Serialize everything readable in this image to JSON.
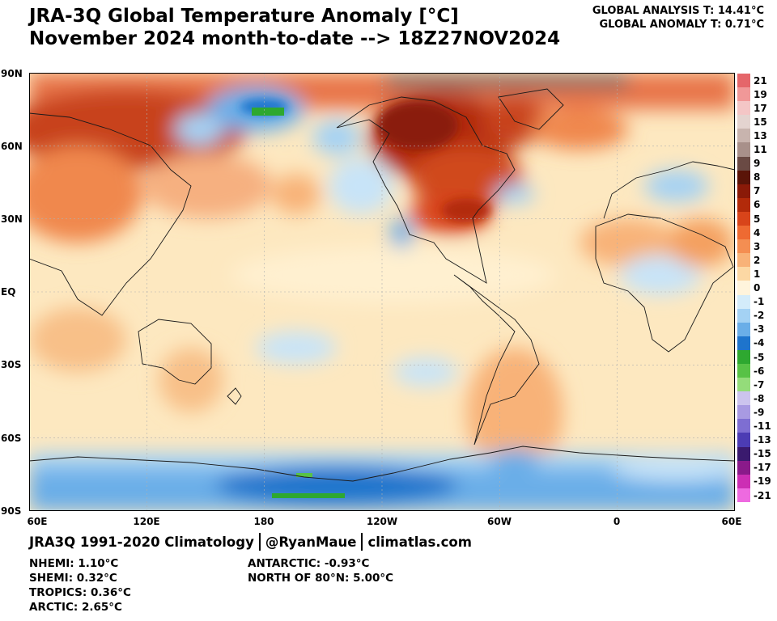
{
  "title_line1": "JRA-3Q Global Temperature Anomaly [°C]",
  "title_line2": "November 2024 month-to-date --> 18Z27NOV2024",
  "global_analysis": "GLOBAL ANALYSIS T: 14.41°C",
  "global_anomaly": "GLOBAL ANOMALY T: 0.71°C",
  "lat_labels": [
    "90N",
    "60N",
    "30N",
    "EQ",
    "30S",
    "60S",
    "90S"
  ],
  "lon_labels": [
    "60E",
    "120E",
    "180",
    "120W",
    "60W",
    "0",
    "60E"
  ],
  "colorbar": {
    "labels": [
      "21",
      "19",
      "17",
      "15",
      "13",
      "11",
      "9",
      "8",
      "7",
      "6",
      "5",
      "4",
      "3",
      "2",
      "1",
      "0",
      "-1",
      "-2",
      "-3",
      "-4",
      "-5",
      "-6",
      "-7",
      "-8",
      "-9",
      "-11",
      "-13",
      "-15",
      "-17",
      "-19",
      "-21"
    ],
    "colors": [
      "#e5666a",
      "#f09898",
      "#f4c6c6",
      "#e4d4d0",
      "#c8b4ae",
      "#a8908a",
      "#6a4a44",
      "#5a1408",
      "#8a1a08",
      "#b22a0a",
      "#d8441a",
      "#ee6a32",
      "#f48e52",
      "#f8b278",
      "#fcd8a4",
      "#fff4dc",
      "#d4ecfa",
      "#a4d2f4",
      "#6aaee8",
      "#1e74cc",
      "#2ea830",
      "#58c246",
      "#94dc7a",
      "#ccc4ee",
      "#a89ae2",
      "#7e6ed2",
      "#4c3cb4",
      "#3a1a6e",
      "#8a1a8a",
      "#cc2eb4",
      "#ee6ae0"
    ]
  },
  "footer": {
    "climatology": "JRA3Q 1991-2020 Climatology",
    "handle": "@RyanMaue",
    "site": "climatlas.com"
  },
  "stats": {
    "nhemi": "NHEMI: 1.10°C",
    "shemi": "SHEMI: 0.32°C",
    "tropics": "TROPICS: 0.36°C",
    "arctic": "ARCTIC: 2.65°C",
    "antarctic": "ANTARCTIC: -0.93°C",
    "north80": "NORTH OF 80°N: 5.00°C"
  }
}
